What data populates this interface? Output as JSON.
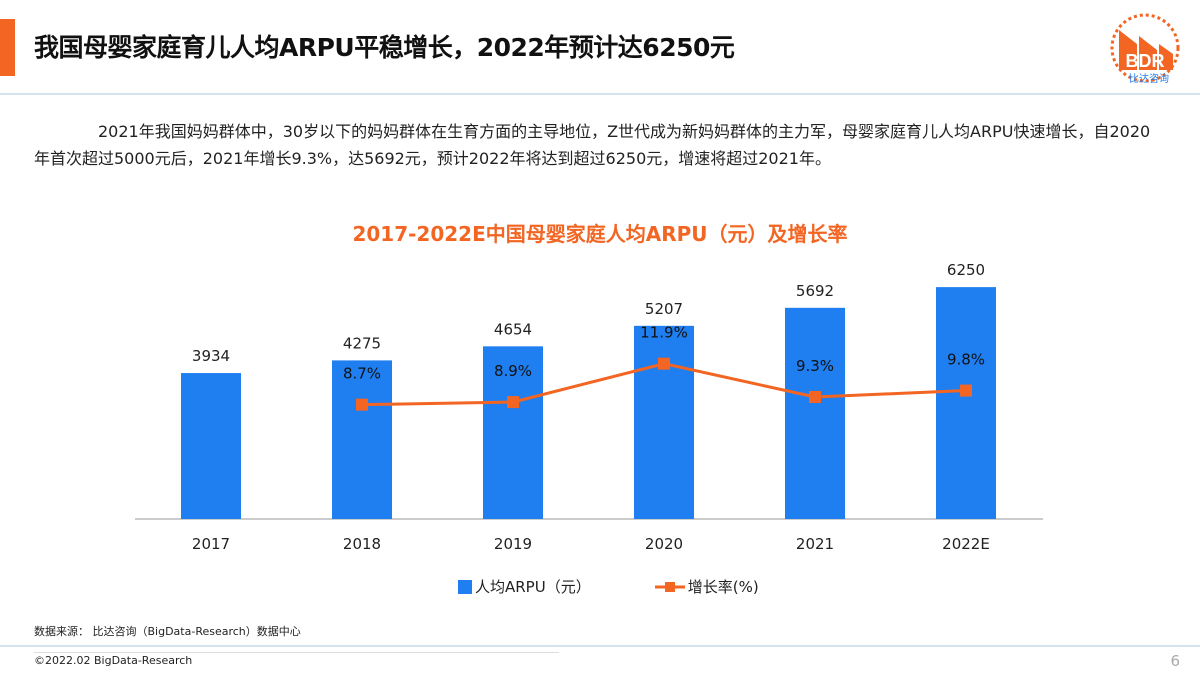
{
  "header": {
    "title": "我国母婴家庭育儿人均ARPU平稳增长，2022年预计达6250元",
    "logo_text": "BDR",
    "logo_subtext": "比达咨询"
  },
  "paragraph": "2021年我国妈妈群体中，30岁以下的妈妈群体在生育方面的主导地位，Z世代成为新妈妈群体的主力军，母婴家庭育儿人均ARPU快速增长，自2020年首次超过5000元后，2021年增长9.3%，达5692元，预计2022年将达到超过6250元，增速将超过2021年。",
  "chart_data": {
    "type": "bar+line",
    "title": "2017-2022E中国母婴家庭人均ARPU（元）及增长率",
    "categories": [
      "2017",
      "2018",
      "2019",
      "2020",
      "2021",
      "2022E"
    ],
    "series": [
      {
        "name": "人均ARPU（元）",
        "type": "bar",
        "color": "#1f7ff0",
        "values": [
          3934,
          4275,
          4654,
          5207,
          5692,
          6250
        ],
        "labels": [
          "3934",
          "4275",
          "4654",
          "5207",
          "5692",
          "6250"
        ]
      },
      {
        "name": "增长率(%)",
        "type": "line",
        "color": "#f26522",
        "values": [
          null,
          8.7,
          8.9,
          11.9,
          9.3,
          9.8
        ],
        "labels": [
          "",
          "8.7%",
          "8.9%",
          "11.9%",
          "9.3%",
          "9.8%"
        ]
      }
    ],
    "legend": "bottom",
    "grid": false
  },
  "footer": {
    "source": "数据来源：  比达咨询（BigData-Research）数据中心",
    "copyright": "©2022.02 BigData-Research",
    "page": "6"
  },
  "colors": {
    "accent": "#f26522",
    "bar": "#1f7ff0"
  }
}
